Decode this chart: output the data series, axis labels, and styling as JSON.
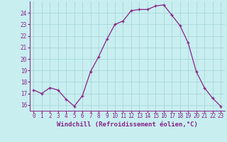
{
  "x": [
    0,
    1,
    2,
    3,
    4,
    5,
    6,
    7,
    8,
    9,
    10,
    11,
    12,
    13,
    14,
    15,
    16,
    17,
    18,
    19,
    20,
    21,
    22,
    23
  ],
  "y": [
    17.3,
    17.0,
    17.5,
    17.3,
    16.5,
    15.9,
    16.8,
    18.9,
    20.2,
    21.7,
    23.0,
    23.3,
    24.2,
    24.3,
    24.3,
    24.6,
    24.7,
    23.8,
    22.9,
    21.4,
    18.9,
    17.5,
    16.6,
    15.9
  ],
  "line_color": "#882288",
  "marker": "+",
  "marker_size": 3.5,
  "bg_color": "#c8eef0",
  "grid_color": "#a8d8da",
  "xlabel": "Windchill (Refroidissement éolien,°C)",
  "xlim": [
    -0.5,
    23.5
  ],
  "ylim": [
    15.5,
    25.0
  ],
  "yticks": [
    16,
    17,
    18,
    19,
    20,
    21,
    22,
    23,
    24
  ],
  "xticks": [
    0,
    1,
    2,
    3,
    4,
    5,
    6,
    7,
    8,
    9,
    10,
    11,
    12,
    13,
    14,
    15,
    16,
    17,
    18,
    19,
    20,
    21,
    22,
    23
  ],
  "tick_label_size": 5.5,
  "xlabel_size": 6.5,
  "lw": 0.9
}
